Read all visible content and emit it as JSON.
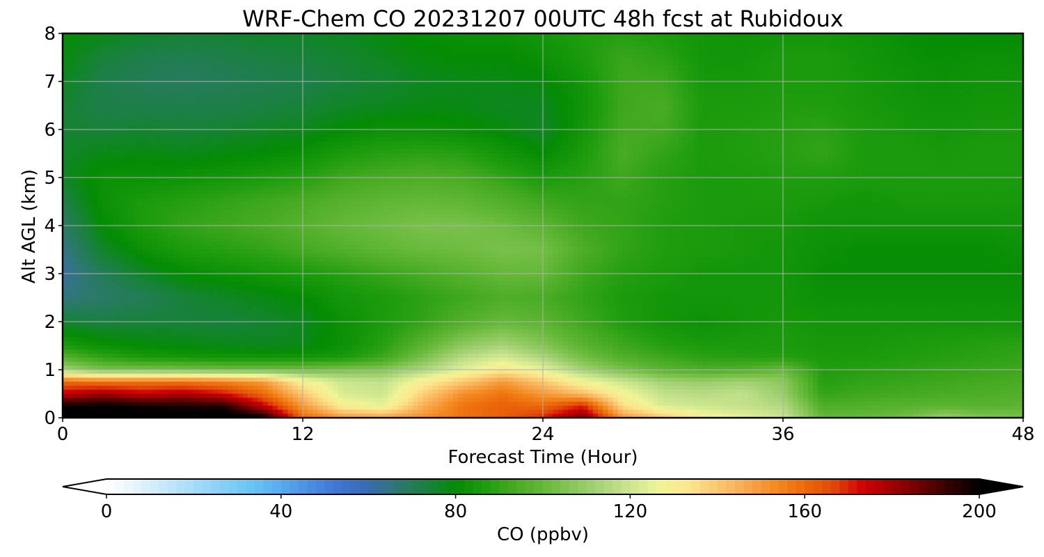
{
  "chart_data": {
    "type": "heatmap",
    "title": "WRF-Chem CO  20231207 00UTC 48h fcst at Rubidoux",
    "xlabel": "Forecast Time (Hour)",
    "ylabel": "Alt AGL (km)",
    "xlim": [
      0,
      48
    ],
    "ylim": [
      0,
      8
    ],
    "x_ticks": [
      0,
      12,
      24,
      36,
      48
    ],
    "y_ticks": [
      0,
      1,
      2,
      3,
      4,
      5,
      6,
      7,
      8
    ],
    "grid": true,
    "x": [
      0,
      2,
      4,
      6,
      8,
      10,
      12,
      14,
      16,
      18,
      20,
      22,
      24,
      26,
      28,
      30,
      32,
      34,
      36,
      38,
      40,
      42,
      44,
      46,
      48
    ],
    "y": [
      0,
      0.25,
      0.5,
      0.75,
      1,
      1.25,
      1.5,
      2,
      2.5,
      3,
      3.5,
      4,
      4.5,
      5,
      5.5,
      6,
      6.5,
      7,
      7.5,
      8
    ],
    "z": [
      [
        205,
        205,
        205,
        205,
        205,
        200,
        160,
        150,
        148,
        152,
        158,
        162,
        170,
        185,
        150,
        140,
        130,
        125,
        120,
        100,
        100,
        102,
        110,
        105,
        104
      ],
      [
        198,
        200,
        198,
        196,
        196,
        175,
        150,
        130,
        125,
        145,
        158,
        162,
        160,
        170,
        135,
        122,
        120,
        118,
        115,
        95,
        96,
        97,
        98,
        97,
        98
      ],
      [
        175,
        180,
        175,
        178,
        172,
        160,
        140,
        122,
        120,
        138,
        152,
        158,
        150,
        142,
        128,
        118,
        116,
        118,
        110,
        90,
        92,
        93,
        94,
        95,
        96
      ],
      [
        160,
        158,
        158,
        158,
        155,
        150,
        130,
        120,
        118,
        130,
        140,
        150,
        140,
        128,
        120,
        112,
        110,
        112,
        108,
        88,
        90,
        91,
        92,
        93,
        94
      ],
      [
        112,
        104,
        104,
        103,
        102,
        102,
        102,
        104,
        106,
        114,
        124,
        132,
        125,
        112,
        104,
        98,
        95,
        96,
        100,
        87,
        88,
        89,
        90,
        91,
        92
      ],
      [
        97,
        90,
        86,
        85,
        84,
        84,
        84,
        86,
        92,
        104,
        116,
        122,
        114,
        103,
        96,
        92,
        89,
        88,
        88,
        86,
        86,
        87,
        88,
        89,
        90
      ],
      [
        86,
        82,
        80,
        79,
        78,
        77,
        78,
        82,
        88,
        98,
        108,
        113,
        106,
        98,
        92,
        88,
        86,
        86,
        86,
        85,
        85,
        86,
        87,
        88,
        89
      ],
      [
        75,
        73,
        74,
        74,
        74,
        75,
        77,
        82,
        86,
        90,
        96,
        100,
        98,
        92,
        87,
        84,
        82,
        84,
        85,
        84,
        84,
        84,
        84,
        84,
        84
      ],
      [
        65,
        68,
        70,
        74,
        76,
        78,
        80,
        84,
        86,
        89,
        92,
        95,
        94,
        90,
        86,
        84,
        84,
        84,
        84,
        82,
        82,
        82,
        82,
        82,
        82
      ],
      [
        62,
        70,
        76,
        80,
        82,
        84,
        86,
        88,
        91,
        94,
        97,
        100,
        100,
        92,
        88,
        86,
        84,
        84,
        84,
        81,
        81,
        81,
        81,
        81,
        81
      ],
      [
        64,
        76,
        82,
        86,
        88,
        90,
        93,
        96,
        99,
        101,
        102,
        104,
        103,
        95,
        90,
        87,
        86,
        85,
        84,
        82,
        81,
        81,
        81,
        81,
        82
      ],
      [
        68,
        80,
        86,
        90,
        92,
        94,
        97,
        100,
        102,
        104,
        104,
        102,
        98,
        92,
        90,
        87,
        86,
        85,
        85,
        83,
        83,
        83,
        83,
        83,
        84
      ],
      [
        72,
        82,
        86,
        88,
        90,
        92,
        94,
        97,
        99,
        100,
        99,
        96,
        92,
        90,
        90,
        88,
        86,
        86,
        86,
        85,
        84,
        85,
        85,
        85,
        85
      ],
      [
        76,
        82,
        82,
        83,
        84,
        86,
        88,
        92,
        94,
        95,
        94,
        90,
        86,
        88,
        92,
        88,
        86,
        86,
        87,
        87,
        86,
        86,
        86,
        86,
        86
      ],
      [
        76,
        78,
        79,
        78,
        79,
        80,
        82,
        86,
        88,
        89,
        88,
        84,
        80,
        86,
        94,
        90,
        86,
        87,
        88,
        90,
        86,
        86,
        85,
        86,
        86
      ],
      [
        75,
        74,
        75,
        74,
        75,
        76,
        77,
        80,
        82,
        82,
        81,
        79,
        76,
        84,
        93,
        93,
        86,
        87,
        88,
        89,
        86,
        85,
        84,
        85,
        85
      ],
      [
        75,
        72,
        72,
        72,
        72,
        73,
        74,
        76,
        77,
        78,
        78,
        77,
        77,
        83,
        92,
        94,
        86,
        86,
        87,
        87,
        85,
        84,
        83,
        84,
        84
      ],
      [
        77,
        72,
        70,
        69,
        70,
        71,
        72,
        74,
        75,
        77,
        78,
        78,
        79,
        84,
        92,
        92,
        85,
        85,
        86,
        86,
        85,
        83,
        82,
        83,
        83
      ],
      [
        79,
        74,
        72,
        71,
        72,
        73,
        74,
        75,
        77,
        79,
        80,
        80,
        82,
        86,
        91,
        89,
        84,
        84,
        86,
        86,
        84,
        82,
        81,
        82,
        82
      ],
      [
        80,
        78,
        76,
        75,
        75,
        76,
        76,
        77,
        79,
        81,
        82,
        82,
        84,
        87,
        88,
        86,
        84,
        83,
        84,
        84,
        83,
        81,
        80,
        80,
        80
      ]
    ],
    "colorbar": {
      "label": "CO  (ppbv)",
      "min": 0,
      "max": 200,
      "ticks": [
        0,
        40,
        80,
        120,
        160,
        200
      ],
      "extend": "both",
      "colors": [
        "#ffffff",
        "#e6f4fc",
        "#c6e8fa",
        "#a6dcf8",
        "#86d0f6",
        "#6ac4f4",
        "#58aaee",
        "#4a8ee2",
        "#3e74d2",
        "#3a6ab0",
        "#2e7870",
        "#1a8040",
        "#048c04",
        "#1e9c0e",
        "#46aa22",
        "#64b838",
        "#88c658",
        "#aad47a",
        "#cce690",
        "#f0f496",
        "#fce68e",
        "#fac870",
        "#f8a850",
        "#f48a20",
        "#ec6a0a",
        "#e04808",
        "#d00000",
        "#a00000",
        "#6a0000",
        "#340000",
        "#000000"
      ]
    }
  }
}
